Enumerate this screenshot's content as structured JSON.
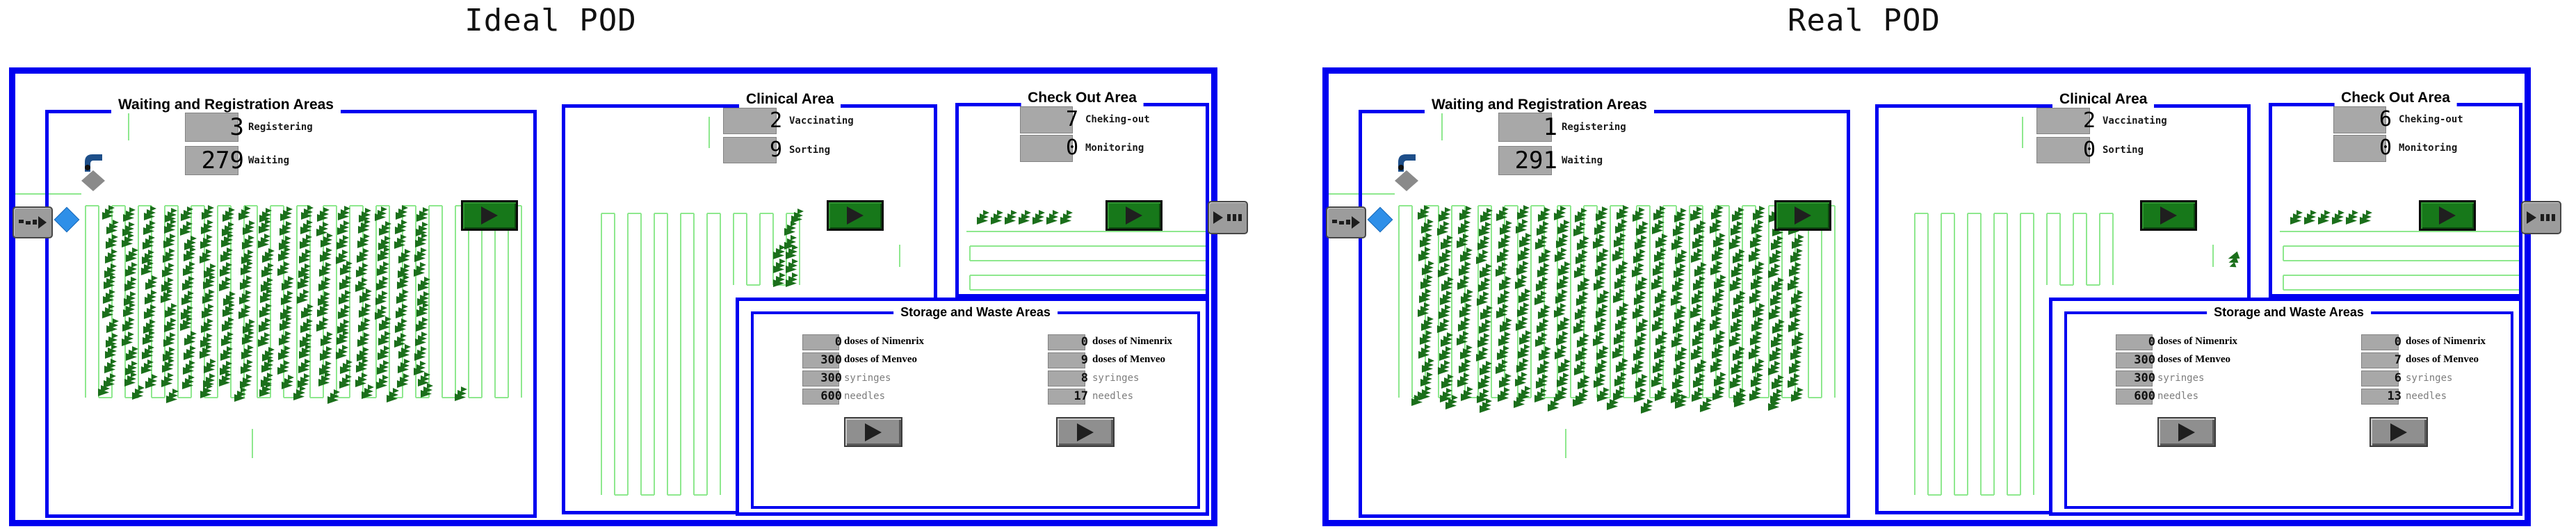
{
  "panels": [
    {
      "title": "Ideal POD",
      "waiting_area": {
        "title": "Waiting and Registration Areas",
        "counters": [
          {
            "value": "3",
            "label": "Registering"
          },
          {
            "value": "279",
            "label": "Waiting"
          }
        ]
      },
      "clinical_area": {
        "title": "Clinical Area",
        "counters": [
          {
            "value": "2",
            "label": "Vaccinating"
          },
          {
            "value": "9",
            "label": "Sorting"
          }
        ]
      },
      "checkout_area": {
        "title": "Check Out Area",
        "counters": [
          {
            "value": "7",
            "label": "Cheking-out"
          },
          {
            "value": "0",
            "label": "Monitoring"
          }
        ]
      },
      "storage_area": {
        "title": "Storage and Waste Areas",
        "stock": [
          {
            "value": "0",
            "label": "doses of Nimenrix"
          },
          {
            "value": "300",
            "label": "doses of Menveo"
          },
          {
            "value": "300",
            "label": "syringes"
          },
          {
            "value": "600",
            "label": "needles"
          }
        ],
        "used": [
          {
            "value": "0",
            "label": "doses of Nimenrix"
          },
          {
            "value": "9",
            "label": "doses of Menveo"
          },
          {
            "value": "8",
            "label": "syringes"
          },
          {
            "value": "17",
            "label": "needles"
          }
        ]
      }
    },
    {
      "title": "Real POD",
      "waiting_area": {
        "title": "Waiting and Registration Areas",
        "counters": [
          {
            "value": "1",
            "label": "Registering"
          },
          {
            "value": "291",
            "label": "Waiting"
          }
        ]
      },
      "clinical_area": {
        "title": "Clinical Area",
        "counters": [
          {
            "value": "2",
            "label": "Vaccinating"
          },
          {
            "value": "0",
            "label": "Sorting"
          }
        ]
      },
      "checkout_area": {
        "title": "Check Out Area",
        "counters": [
          {
            "value": "6",
            "label": "Cheking-out"
          },
          {
            "value": "0",
            "label": "Monitoring"
          }
        ]
      },
      "storage_area": {
        "title": "Storage and Waste Areas",
        "stock": [
          {
            "value": "0",
            "label": "doses of Nimenrix"
          },
          {
            "value": "300",
            "label": "doses of Menveo"
          },
          {
            "value": "300",
            "label": "syringes"
          },
          {
            "value": "600",
            "label": "needles"
          }
        ],
        "used": [
          {
            "value": "0",
            "label": "doses of Nimenrix"
          },
          {
            "value": "7",
            "label": "doses of Menveo"
          },
          {
            "value": "6",
            "label": "syringes"
          },
          {
            "value": "13",
            "label": "needles"
          }
        ]
      }
    }
  ],
  "colors": {
    "border_blue": "#0000f0",
    "queue_line_green": "#8ee88e",
    "agent_green": "#1b6f1b",
    "button_green": "#17781a",
    "counter_gray": "#a8a8a8",
    "diamond_blue": "#2e8fe8"
  },
  "icons": {
    "entrance": "source-icon",
    "exit": "sink-icon",
    "server": "play-server-icon",
    "resource_restock": "restock-play-icon"
  }
}
